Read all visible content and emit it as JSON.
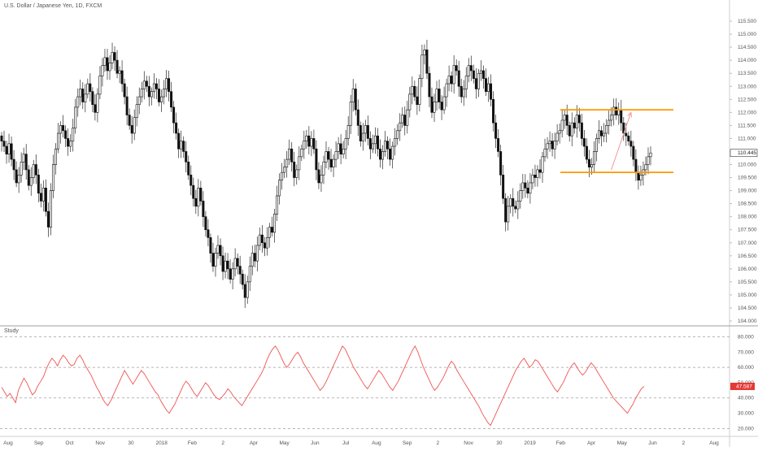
{
  "chart_data": [
    {
      "type": "candlestick",
      "title": "U.S. Dollar / Japanese Yen, 1D, FXCM",
      "ylim": [
        104.0,
        116.0
      ],
      "y_ticks": [
        "104.000",
        "104.500",
        "105.000",
        "105.500",
        "106.000",
        "106.500",
        "107.000",
        "107.500",
        "108.000",
        "108.500",
        "109.000",
        "109.500",
        "110.000",
        "110.445",
        "110.500",
        "111.000",
        "111.500",
        "112.000",
        "112.500",
        "113.000",
        "113.500",
        "114.000",
        "114.500",
        "115.000",
        "115.500"
      ],
      "last_price": "110.445",
      "x_labels": [
        "Aug",
        "Sep",
        "Oct",
        "Nov",
        "30",
        "2018",
        "Feb",
        "2",
        "Apr",
        "May",
        "Jun",
        "Jul",
        "Aug",
        "Sep",
        "2",
        "Nov",
        "30",
        "2019",
        "Feb",
        "Apr",
        "May",
        "Jun",
        "2",
        "Aug"
      ],
      "series_close": [
        110.9,
        110.7,
        110.4,
        110.8,
        110.2,
        109.8,
        109.3,
        109.6,
        110.1,
        110.4,
        109.8,
        109.2,
        109.5,
        110.0,
        109.6,
        108.9,
        108.6,
        109.1,
        108.2,
        107.6,
        109.0,
        110.0,
        110.6,
        111.2,
        111.5,
        111.3,
        111.0,
        110.7,
        110.9,
        111.4,
        112.2,
        112.6,
        112.9,
        112.4,
        112.7,
        113.1,
        112.8,
        112.3,
        112.0,
        112.7,
        113.4,
        113.8,
        114.1,
        113.6,
        113.9,
        114.3,
        114.0,
        113.5,
        113.6,
        113.1,
        112.6,
        111.9,
        111.5,
        111.2,
        111.8,
        112.3,
        112.6,
        112.9,
        113.2,
        113.0,
        112.6,
        112.8,
        113.1,
        112.9,
        112.4,
        112.6,
        112.9,
        113.3,
        112.8,
        112.2,
        111.6,
        111.2,
        110.6,
        110.9,
        110.5,
        110.1,
        109.6,
        109.2,
        108.7,
        108.4,
        109.1,
        108.6,
        108.0,
        107.5,
        107.2,
        106.6,
        106.1,
        106.6,
        106.9,
        106.5,
        105.9,
        106.3,
        106.0,
        105.6,
        106.0,
        106.4,
        106.1,
        105.8,
        105.4,
        104.9,
        105.5,
        106.1,
        106.6,
        106.3,
        106.9,
        107.3,
        107.0,
        106.8,
        107.2,
        107.6,
        107.4,
        108.1,
        108.8,
        109.4,
        109.7,
        109.9,
        110.2,
        110.6,
        110.1,
        109.5,
        109.8,
        110.3,
        110.6,
        110.9,
        111.1,
        110.7,
        111.0,
        110.6,
        109.8,
        109.3,
        109.6,
        110.1,
        110.5,
        110.2,
        109.9,
        110.2,
        110.5,
        110.8,
        110.4,
        110.6,
        111.0,
        111.5,
        112.4,
        112.9,
        112.1,
        111.5,
        110.9,
        111.2,
        111.5,
        111.0,
        110.6,
        110.8,
        111.1,
        110.6,
        110.2,
        110.5,
        110.9,
        110.6,
        110.2,
        110.7,
        111.0,
        111.3,
        111.6,
        111.9,
        111.5,
        112.1,
        112.7,
        113.0,
        112.6,
        112.3,
        113.3,
        114.2,
        114.4,
        113.5,
        112.6,
        112.0,
        112.4,
        112.9,
        112.4,
        112.1,
        112.6,
        113.1,
        113.4,
        113.1,
        113.8,
        113.6,
        113.0,
        112.6,
        112.9,
        113.4,
        113.8,
        113.6,
        113.3,
        112.9,
        113.5,
        113.6,
        113.3,
        112.8,
        113.1,
        112.5,
        111.6,
        111.0,
        110.5,
        109.6,
        108.7,
        107.8,
        108.4,
        108.7,
        108.4,
        108.3,
        108.6,
        109.0,
        109.3,
        109.1,
        108.9,
        109.3,
        109.6,
        109.5,
        109.8,
        109.7,
        110.3,
        110.6,
        110.8,
        110.9,
        110.6,
        110.9,
        111.2,
        111.3,
        111.7,
        111.9,
        111.5,
        111.1,
        111.6,
        111.4,
        111.9,
        111.6,
        111.0,
        110.7,
        110.2,
        109.9,
        110.0,
        110.5,
        111.0,
        111.3,
        111.1,
        111.2,
        111.5,
        111.7,
        111.9,
        112.2,
        111.9,
        112.1,
        111.6,
        111.2,
        111.1,
        110.9,
        110.7,
        110.2,
        109.7,
        109.4,
        109.6,
        109.8,
        110.0,
        110.3,
        110.445
      ],
      "annotations": [
        {
          "type": "horizontal",
          "color": "#ff9800",
          "value": 112.1
        },
        {
          "type": "horizontal",
          "color": "#ff9800",
          "value": 109.7
        },
        {
          "type": "arrow",
          "color": "#ef9a9a",
          "from_index": 248,
          "from_value": 109.8,
          "to_index": 256,
          "to_value": 112.0
        }
      ]
    },
    {
      "type": "line",
      "title": "Study",
      "ylim": [
        17.0,
        84.0
      ],
      "y_ticks": [
        "20.000",
        "30.000",
        "40.000",
        "47.587",
        "50.000",
        "60.000",
        "70.000",
        "80.000"
      ],
      "last_value": "47.587",
      "reference_lines": [
        20,
        40,
        60,
        80
      ],
      "series_color": "#ef5350",
      "values": [
        47,
        44,
        41,
        43,
        40,
        37,
        45,
        49,
        53,
        50,
        46,
        42,
        44,
        48,
        51,
        54,
        59,
        63,
        66,
        64,
        61,
        65,
        68,
        66,
        63,
        61,
        62,
        66,
        68,
        65,
        61,
        58,
        55,
        51,
        47,
        44,
        40,
        37,
        35,
        38,
        42,
        46,
        50,
        54,
        58,
        55,
        52,
        49,
        52,
        55,
        58,
        56,
        53,
        50,
        47,
        44,
        42,
        38,
        35,
        32,
        30,
        33,
        36,
        40,
        44,
        48,
        51,
        49,
        46,
        43,
        41,
        44,
        47,
        50,
        48,
        45,
        42,
        40,
        39,
        41,
        43,
        46,
        44,
        41,
        39,
        37,
        35,
        38,
        41,
        44,
        47,
        50,
        53,
        56,
        60,
        65,
        69,
        72,
        74,
        71,
        67,
        63,
        60,
        62,
        65,
        68,
        70,
        67,
        63,
        60,
        57,
        54,
        51,
        48,
        45,
        47,
        50,
        54,
        58,
        62,
        66,
        70,
        74,
        72,
        68,
        64,
        60,
        57,
        54,
        51,
        48,
        46,
        49,
        52,
        55,
        58,
        56,
        53,
        50,
        47,
        45,
        48,
        51,
        55,
        59,
        63,
        67,
        71,
        74,
        70,
        65,
        60,
        56,
        52,
        48,
        45,
        47,
        50,
        53,
        57,
        61,
        64,
        62,
        58,
        55,
        52,
        49,
        46,
        43,
        40,
        37,
        34,
        30,
        27,
        24,
        22,
        26,
        30,
        34,
        38,
        42,
        46,
        50,
        54,
        58,
        61,
        64,
        66,
        63,
        60,
        62,
        65,
        64,
        61,
        58,
        55,
        52,
        49,
        46,
        44,
        47,
        50,
        54,
        58,
        61,
        63,
        60,
        57,
        55,
        57,
        60,
        63,
        61,
        58,
        55,
        52,
        49,
        46,
        43,
        40,
        38,
        36,
        34,
        32,
        30,
        33,
        36,
        40,
        43,
        46,
        47.587
      ]
    }
  ]
}
